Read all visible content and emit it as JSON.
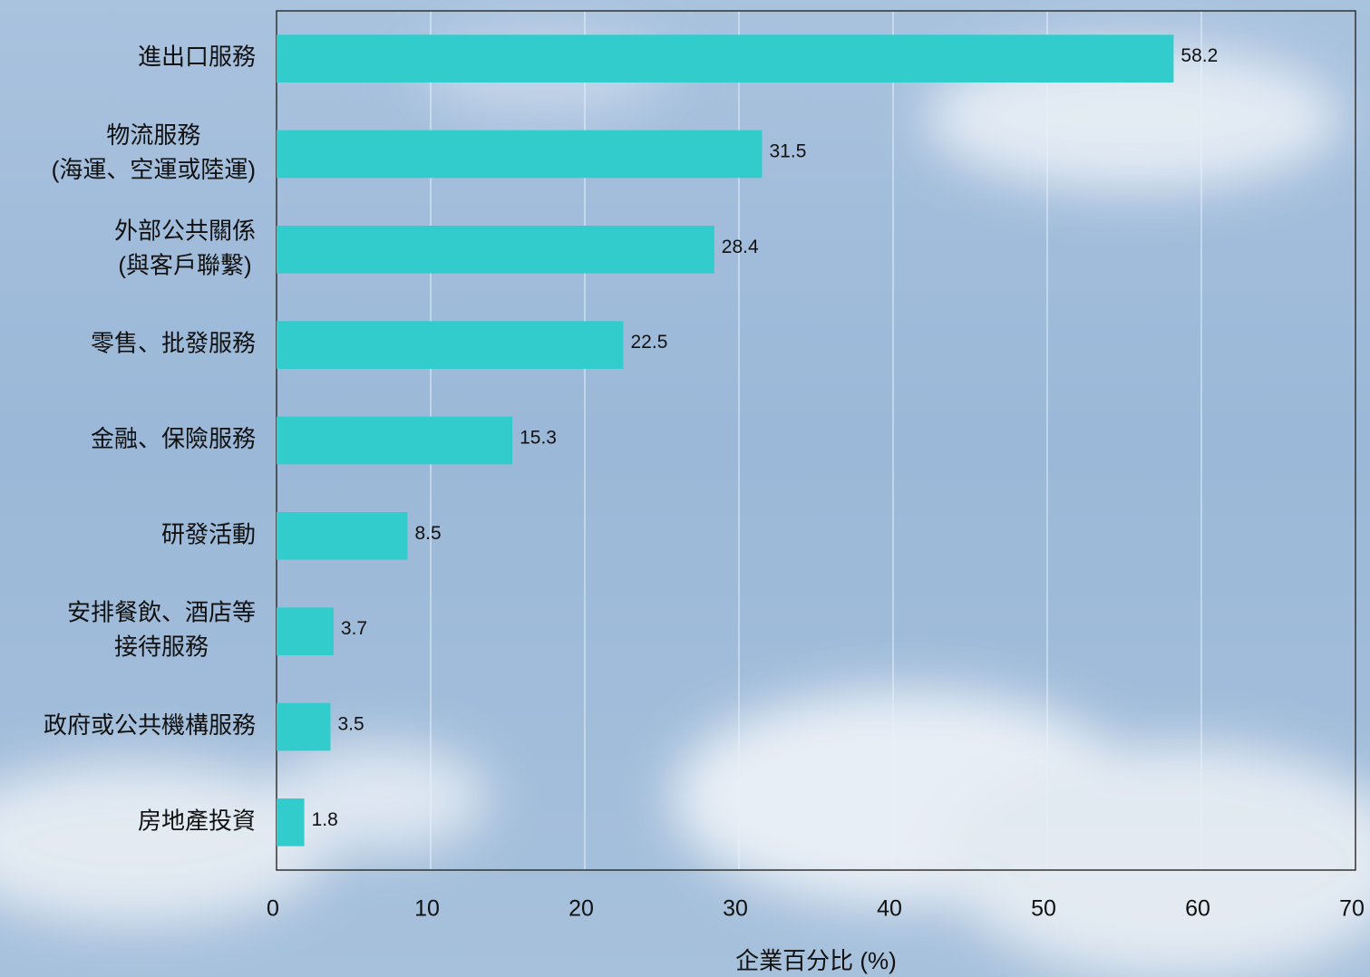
{
  "chart_data": {
    "type": "bar",
    "orientation": "horizontal",
    "categories": [
      [
        "進出口服務"
      ],
      [
        "物流服務",
        "(海運、空運或陸運)"
      ],
      [
        "外部公共關係",
        "(與客戶聯繫)"
      ],
      [
        "零售、批發服務"
      ],
      [
        "金融、保險服務"
      ],
      [
        "研發活動"
      ],
      [
        "安排餐飲、酒店等",
        "接待服務"
      ],
      [
        "政府或公共機構服務"
      ],
      [
        "房地產投資"
      ]
    ],
    "values": [
      58.2,
      31.5,
      28.4,
      22.5,
      15.3,
      8.5,
      3.7,
      3.5,
      1.8
    ],
    "color": "#33cccc",
    "xlabel": "企業百分比 (%)",
    "xlim": [
      0,
      70
    ],
    "xticks": [
      0,
      10,
      20,
      30,
      40,
      50,
      60,
      70
    ],
    "grid": true
  }
}
